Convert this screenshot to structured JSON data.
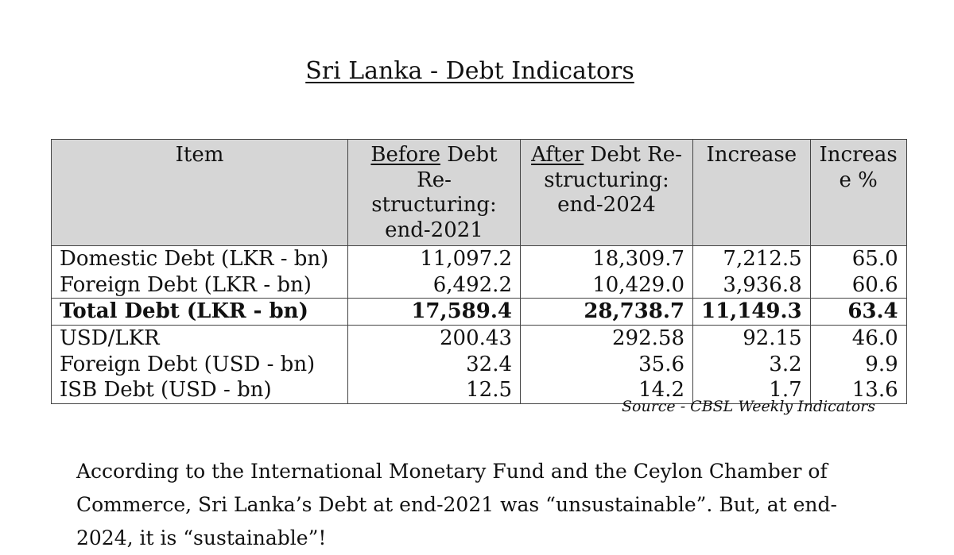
{
  "title": "Sri Lanka - Debt Indicators",
  "table": {
    "headers": {
      "item": "Item",
      "before_u": "Before",
      "before_rest": " Debt Re-structuring: end-2021",
      "after_u": "After",
      "after_rest": " Debt Re-structuring: end-2024",
      "increase": "Increase",
      "increase_pct": "Increas e %"
    },
    "rows": [
      {
        "item": "Domestic Debt (LKR - bn)",
        "before": "11,097.2",
        "after": "18,309.7",
        "increase": "7,212.5",
        "pct": "65.0"
      },
      {
        "item": "Foreign Debt (LKR - bn)",
        "before": "6,492.2",
        "after": "10,429.0",
        "increase": "3,936.8",
        "pct": "60.6"
      },
      {
        "item": "Total Debt (LKR - bn)",
        "before": "17,589.4",
        "after": "28,738.7",
        "increase": "11,149.3",
        "pct": "63.4"
      },
      {
        "item": "USD/LKR",
        "before": "200.43",
        "after": "292.58",
        "increase": "92.15",
        "pct": "46.0"
      },
      {
        "item": "Foreign Debt (USD - bn)",
        "before": "32.4",
        "after": "35.6",
        "increase": "3.2",
        "pct": "9.9"
      },
      {
        "item": "ISB Debt (USD - bn)",
        "before": "12.5",
        "after": "14.2",
        "increase": "1.7",
        "pct": "13.6"
      }
    ]
  },
  "source": "Source - CBSL Weekly Indicators",
  "paragraph": "According to the International Monetary Fund and the Ceylon Chamber of Commerce, Sri Lanka’s Debt at end-2021 was “unsustainable”. But, at end-2024, it is “sustainable”!"
}
